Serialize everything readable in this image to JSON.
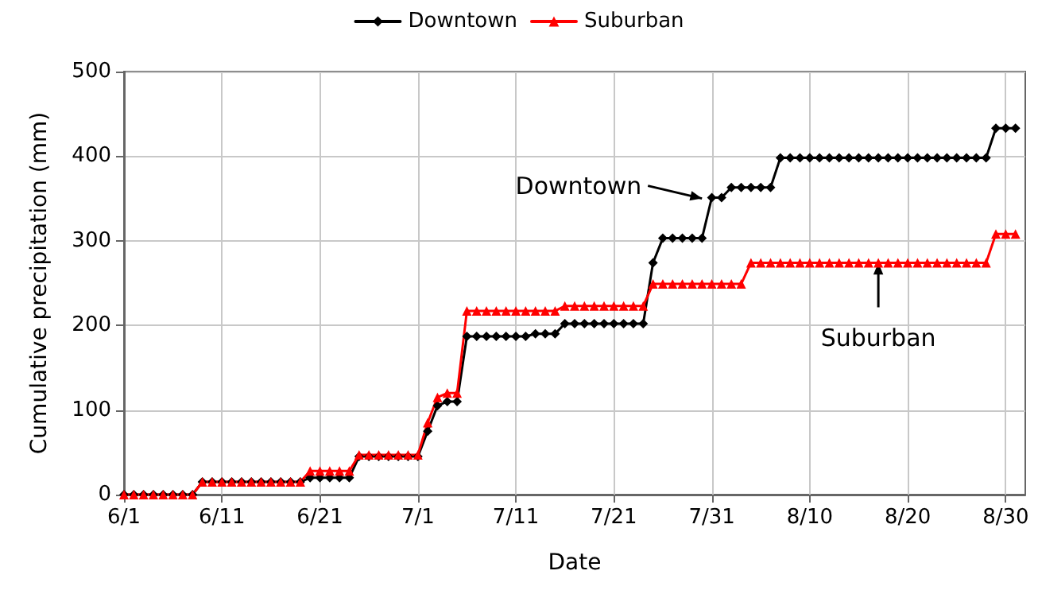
{
  "chart_data": {
    "type": "line",
    "xlabel": "Date",
    "ylabel": "Cumulative precipitation (mm)",
    "x": [
      "--06-01",
      "--06-02",
      "--06-03",
      "--06-04",
      "--06-05",
      "--06-06",
      "--06-07",
      "--06-08",
      "--06-09",
      "--06-10",
      "--06-11",
      "--06-12",
      "--06-13",
      "--06-14",
      "--06-15",
      "--06-16",
      "--06-17",
      "--06-18",
      "--06-19",
      "--06-20",
      "--06-21",
      "--06-22",
      "--06-23",
      "--06-24",
      "--06-25",
      "--06-26",
      "--06-27",
      "--06-28",
      "--06-29",
      "--06-30",
      "--07-01",
      "--07-02",
      "--07-03",
      "--07-04",
      "--07-05",
      "--07-06",
      "--07-07",
      "--07-08",
      "--07-09",
      "--07-10",
      "--07-11",
      "--07-12",
      "--07-13",
      "--07-14",
      "--07-15",
      "--07-16",
      "--07-17",
      "--07-18",
      "--07-19",
      "--07-20",
      "--07-21",
      "--07-22",
      "--07-23",
      "--07-24",
      "--07-25",
      "--07-26",
      "--07-27",
      "--07-28",
      "--07-29",
      "--07-30",
      "--07-31",
      "--08-01",
      "--08-02",
      "--08-03",
      "--08-04",
      "--08-05",
      "--08-06",
      "--08-07",
      "--08-08",
      "--08-09",
      "--08-10",
      "--08-11",
      "--08-12",
      "--08-13",
      "--08-14",
      "--08-15",
      "--08-16",
      "--08-17",
      "--08-18",
      "--08-19",
      "--08-20",
      "--08-21",
      "--08-22",
      "--08-23",
      "--08-24",
      "--08-25",
      "--08-26",
      "--08-27",
      "--08-28",
      "--08-29",
      "--08-30",
      "--08-31"
    ],
    "series": [
      {
        "name": "Downtown",
        "color": "#000000",
        "marker": "diamond",
        "values": [
          0,
          0,
          0,
          0,
          0,
          0,
          0,
          0,
          15,
          15,
          15,
          15,
          15,
          15,
          15,
          15,
          15,
          15,
          15,
          20,
          20,
          20,
          20,
          20,
          45,
          45,
          45,
          45,
          45,
          45,
          45,
          75,
          105,
          110,
          110,
          187,
          187,
          187,
          187,
          187,
          187,
          187,
          190,
          190,
          190,
          202,
          202,
          202,
          202,
          202,
          202,
          202,
          202,
          202,
          274,
          303,
          303,
          303,
          303,
          303,
          351,
          351,
          363,
          363,
          363,
          363,
          363,
          398,
          398,
          398,
          398,
          398,
          398,
          398,
          398,
          398,
          398,
          398,
          398,
          398,
          398,
          398,
          398,
          398,
          398,
          398,
          398,
          398,
          398,
          433,
          433,
          433
        ]
      },
      {
        "name": "Suburban",
        "color": "#ff0000",
        "marker": "triangle",
        "values": [
          0,
          0,
          0,
          0,
          0,
          0,
          0,
          0,
          15,
          15,
          15,
          15,
          15,
          15,
          15,
          15,
          15,
          15,
          15,
          28,
          28,
          28,
          28,
          28,
          47,
          47,
          47,
          47,
          47,
          47,
          47,
          85,
          115,
          120,
          120,
          217,
          217,
          217,
          217,
          217,
          217,
          217,
          217,
          217,
          217,
          223,
          223,
          223,
          223,
          223,
          223,
          223,
          223,
          223,
          249,
          249,
          249,
          249,
          249,
          249,
          249,
          249,
          249,
          249,
          274,
          274,
          274,
          274,
          274,
          274,
          274,
          274,
          274,
          274,
          274,
          274,
          274,
          274,
          274,
          274,
          274,
          274,
          274,
          274,
          274,
          274,
          274,
          274,
          274,
          308,
          308,
          308
        ]
      }
    ],
    "xlim": [
      "--06-01",
      "--09-01"
    ],
    "xticks": [
      {
        "value": "--06-01",
        "label": "6/1"
      },
      {
        "value": "--06-11",
        "label": "6/11"
      },
      {
        "value": "--06-21",
        "label": "6/21"
      },
      {
        "value": "--07-01",
        "label": "7/1"
      },
      {
        "value": "--07-11",
        "label": "7/11"
      },
      {
        "value": "--07-21",
        "label": "7/21"
      },
      {
        "value": "--07-31",
        "label": "7/31"
      },
      {
        "value": "--08-10",
        "label": "8/10"
      },
      {
        "value": "--08-20",
        "label": "8/20"
      },
      {
        "value": "--08-30",
        "label": "8/30"
      }
    ],
    "ylim": [
      0,
      500
    ],
    "yticks": [
      0,
      100,
      200,
      300,
      400,
      500
    ],
    "grid": true,
    "legend": "top",
    "line_style": "solid",
    "annotations": [
      {
        "text": "Downtown",
        "x": "--07-30",
        "y": 350
      },
      {
        "text": "Suburban",
        "x": "--08-17",
        "y": 274
      }
    ]
  }
}
